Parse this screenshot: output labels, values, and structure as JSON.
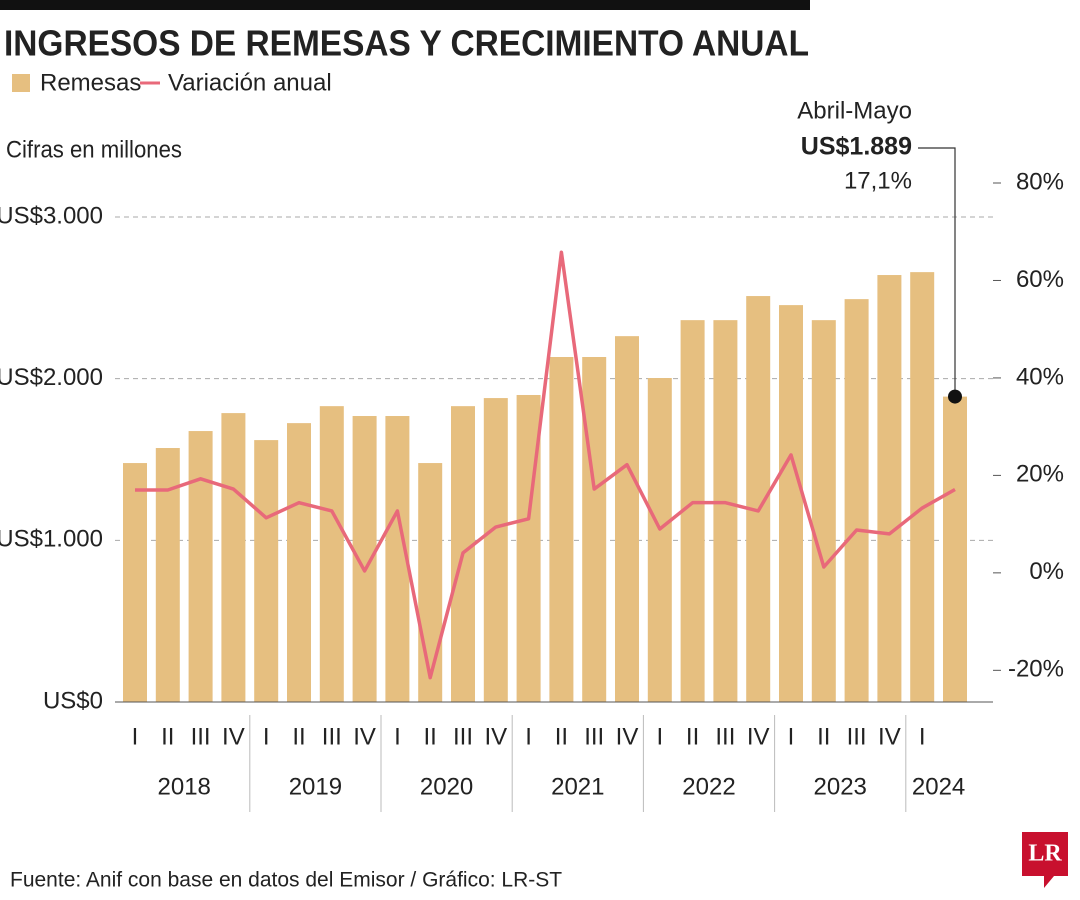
{
  "chart_data": {
    "type": "bar",
    "title": "INGRESOS DE REMESAS Y CRECIMIENTO ANUAL",
    "subtitle": "Cifras en millones",
    "annotation": "Abril-Mayo",
    "source": "Fuente: Anif con base en datos del Emisor / Gráfico: LR-ST",
    "logo": "LR",
    "categories": [
      "I",
      "II",
      "III",
      "IV",
      "I",
      "II",
      "III",
      "IV",
      "I",
      "II",
      "III",
      "IV",
      "I",
      "II",
      "III",
      "IV",
      "I",
      "II",
      "III",
      "IV",
      "I",
      "II",
      "III",
      "IV",
      "I",
      null
    ],
    "x_groups": [
      "2018",
      "2019",
      "2020",
      "2021",
      "2022",
      "2023",
      "2024"
    ],
    "series": [
      {
        "name": "Remesas",
        "type": "bar",
        "color": "#e6bf80",
        "values": [
          1478,
          1571,
          1676,
          1787,
          1620,
          1725,
          1830,
          1769,
          1769,
          1478,
          1830,
          1880,
          1899,
          2134,
          2134,
          2263,
          2004,
          2362,
          2362,
          2511,
          2455,
          2362,
          2492,
          2641,
          2659,
          1889
        ],
        "value_labels": [
          null,
          null,
          null,
          null,
          null,
          null,
          null,
          null,
          null,
          null,
          null,
          null,
          null,
          null,
          null,
          null,
          null,
          null,
          null,
          null,
          null,
          null,
          null,
          null,
          null,
          "US$1.889"
        ]
      },
      {
        "name": "Variación anual",
        "type": "line",
        "axis": "y2",
        "color": "#e8697a",
        "values": [
          17.0,
          17.0,
          19.3,
          17.2,
          11.3,
          14.4,
          12.7,
          0.4,
          12.7,
          -21.5,
          4.1,
          9.4,
          11.1,
          65.8,
          17.2,
          22.2,
          9.0,
          14.4,
          14.4,
          12.7,
          24.2,
          1.2,
          8.8,
          8.0,
          13.3,
          17.1
        ],
        "value_labels": [
          null,
          null,
          null,
          null,
          null,
          null,
          null,
          null,
          null,
          null,
          null,
          null,
          null,
          null,
          null,
          null,
          null,
          null,
          null,
          null,
          null,
          null,
          null,
          null,
          null,
          "17,1%"
        ]
      }
    ],
    "ylim": [
      0,
      3000
    ],
    "yticks": [
      {
        "value": 0,
        "label": "US$0"
      },
      {
        "value": 1000,
        "label": "US$1.000"
      },
      {
        "value": 2000,
        "label": "US$2.000"
      },
      {
        "value": 3000,
        "label": "US$3.000"
      }
    ],
    "y2lim": [
      -26.5,
      80
    ],
    "y2ticks": [
      {
        "value": -20,
        "label": "-20%"
      },
      {
        "value": 0,
        "label": "0%"
      },
      {
        "value": 20,
        "label": "20%"
      },
      {
        "value": 40,
        "label": "40%"
      },
      {
        "value": 60,
        "label": "60%"
      },
      {
        "value": 80,
        "label": "80%"
      }
    ],
    "grid": true
  }
}
